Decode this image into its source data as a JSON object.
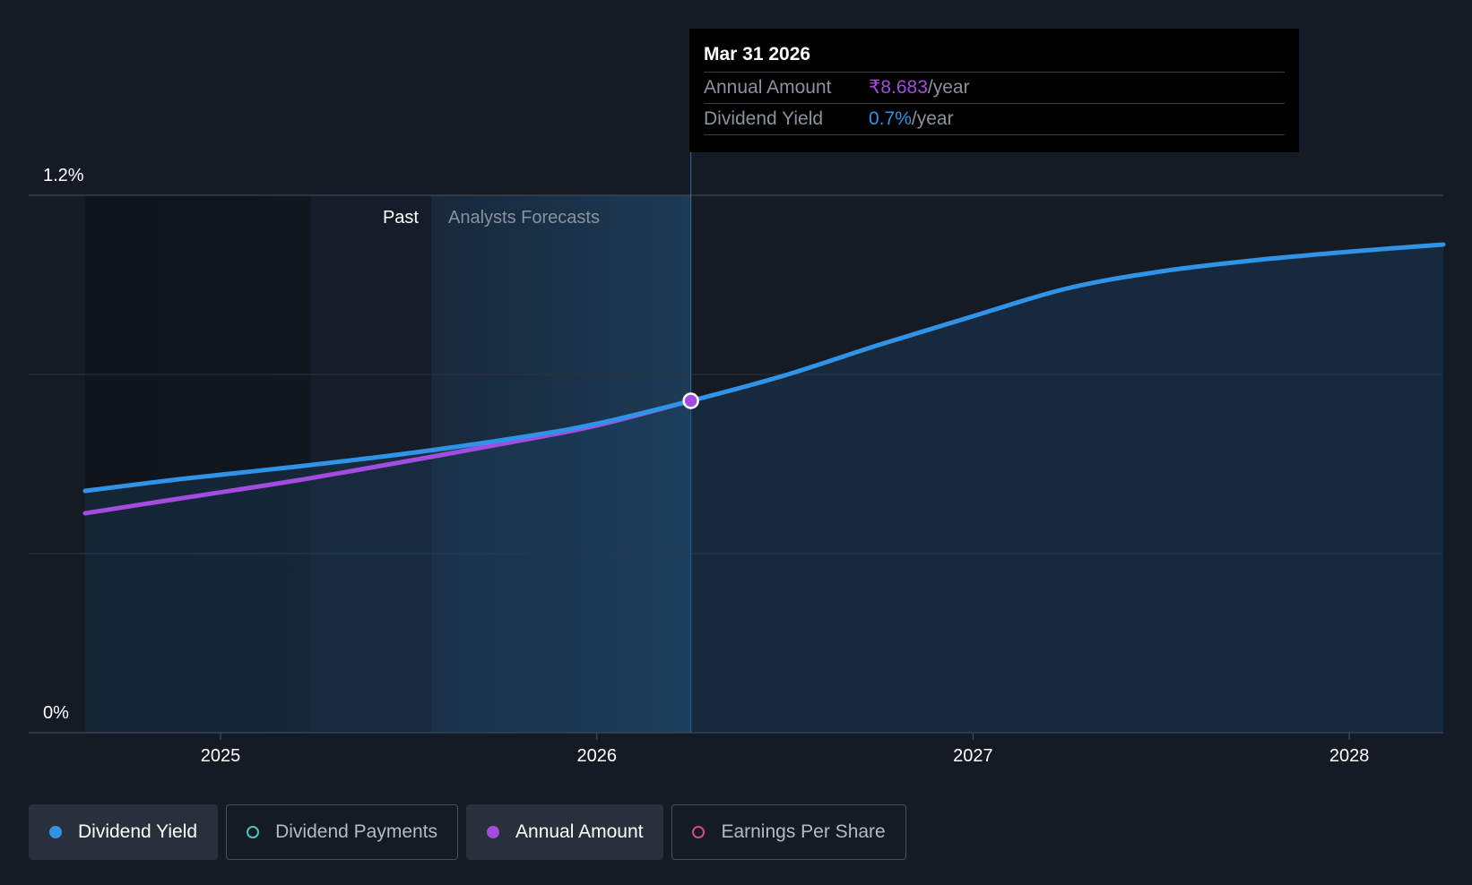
{
  "chart_data": {
    "type": "line",
    "title": "",
    "xlabel": "",
    "ylabel": "",
    "ylim": [
      0,
      1.2
    ],
    "y_tick_labels": [
      "1.2%",
      "0%"
    ],
    "x_tick_labels": [
      "2025",
      "2026",
      "2027",
      "2028"
    ],
    "x_ticks": [
      2025,
      2026,
      2027,
      2028
    ],
    "xlim": [
      2024.49,
      2028.25
    ],
    "regions": {
      "past_label": "Past",
      "forecast_label": "Analysts Forecasts",
      "past_end": 2025.56,
      "today": 2026.25
    },
    "series": [
      {
        "name": "Dividend Yield",
        "color": "#2f93e8",
        "x": [
          2024.64,
          2024.9,
          2025.2,
          2025.5,
          2025.8,
          2026.0,
          2026.25,
          2026.5,
          2026.75,
          2027.0,
          2027.25,
          2027.5,
          2027.75,
          2028.0,
          2028.25
        ],
        "y": [
          0.54,
          0.567,
          0.594,
          0.624,
          0.66,
          0.69,
          0.741,
          0.798,
          0.866,
          0.93,
          0.992,
          1.03,
          1.055,
          1.074,
          1.09
        ]
      },
      {
        "name": "Annual Amount",
        "color": "#a24de0",
        "x": [
          2024.64,
          2024.9,
          2025.2,
          2025.5,
          2025.8,
          2026.0,
          2026.25
        ],
        "y": [
          0.49,
          0.524,
          0.563,
          0.607,
          0.653,
          0.686,
          0.741
        ]
      }
    ],
    "annotations": [
      {
        "x": 2026.25,
        "y": 0.741,
        "label": "highlighted point"
      }
    ]
  },
  "tooltip": {
    "date": "Mar 31 2026",
    "rows": [
      {
        "label": "Annual Amount",
        "value": "₹8.683",
        "suffix": "/year"
      },
      {
        "label": "Dividend Yield",
        "value": "0.7%",
        "suffix": "/year"
      }
    ]
  },
  "legend": [
    {
      "label": "Dividend Yield",
      "dot_color": "#2f93e8",
      "active": true,
      "filled": true
    },
    {
      "label": "Dividend Payments",
      "dot_color": "#4fc3b8",
      "active": false,
      "filled": false
    },
    {
      "label": "Annual Amount",
      "dot_color": "#a24de0",
      "active": true,
      "filled": true
    },
    {
      "label": "Earnings Per Share",
      "dot_color": "#d84a7e",
      "active": false,
      "filled": false
    }
  ]
}
